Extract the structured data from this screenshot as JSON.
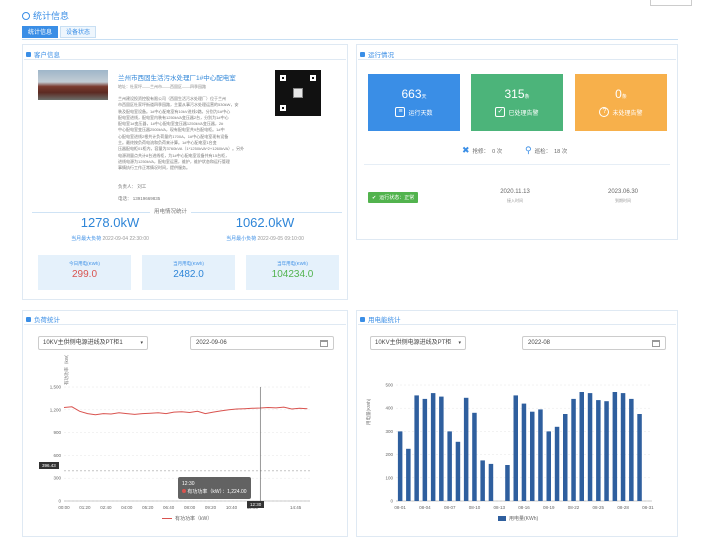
{
  "header": {
    "title": "统计信息"
  },
  "tabs": [
    {
      "label": "统计信息",
      "active": true
    },
    {
      "label": "设备状态",
      "active": false
    }
  ],
  "customer": {
    "panel_title": "客户信息",
    "name": "兰州市西固生活污水处理厂1#中心配电室",
    "address": "地址：杜家坪——兰州市——西固区——四季园路",
    "description_lines": [
      "兰州建设投资控股有限公司（西固生活污水处理厂）位于兰州",
      "市西固区杜家坪街道四季园路，主要从事污水处理运营的530kW，安",
      "装及配电室设备。1#中心配电室有10kV进线2路，分别为1#中心",
      "配电室进线，配电室内装有1250kVA变压器2台，分别为1#中心",
      "配电室1#变压器，1#中心配电室变压器1250kVA变压器，2#",
      "中心配电室变压器2500kVA，现有配电室共9台配电柜。1#中",
      "心配电室进线2根共计负荷量约1700A，1#中心配电室现有设备",
      "主。最终按负荷电流和负荷来计算。1#中心配电室1台变",
      "压器配电柜01柜内，容量为3760kVA（1*1250kVA*2+1260kVA）。另外",
      "电源测量点共计8台进线柜，为1#中心配电室设备共有15台柜，",
      "进线电源为1250kVA，配电室运营，维护，维护状态和运行管理",
      "事情执行工作正常情况时间，提供服务。"
    ],
    "contact_person": "负责人：   刘工",
    "phone": "电话：  13919669835"
  },
  "power_stats": {
    "title": "用电情况统计",
    "max_value": "1278.0kW",
    "max_label": "当月最大负荷",
    "max_time": "2022-09-04 22:30:00",
    "min_value": "1062.0kW",
    "min_label": "当月最小负荷",
    "min_time": "2022-09-05 09:10:00",
    "daily_label": "今日用电(KWh)",
    "daily_value": "299.0",
    "monthly_label": "当月用电(KWh)",
    "monthly_value": "2482.0",
    "yearly_label": "当年用电(KWh)",
    "yearly_value": "104234.0"
  },
  "operation": {
    "panel_title": "运行情况",
    "run_days": "663",
    "run_days_unit": "天",
    "run_days_label": "运行天数",
    "handled_alarms": "315",
    "handled_alarms_unit": "条",
    "handled_alarms_label": "已处理告警",
    "unhandled_alarms": "0",
    "unhandled_alarms_unit": "条",
    "unhandled_alarms_label": "未处理告警",
    "repair_label": "抢修：",
    "repair_value": "0 次",
    "patrol_label": "巡检：",
    "patrol_value": "18 次",
    "status_text": "运行状态：正常",
    "install_date": "2020.11.13",
    "install_label": "接入时间",
    "expire_date": "2023.06.30",
    "expire_label": "到期时间"
  },
  "load_panel": {
    "title": "负荷统计",
    "select_value": "10KV主供侧电源进线及PT柜1",
    "date_value": "2022-09-06",
    "tooltip_time": "12:30",
    "tooltip_text": "有功功率（kW）：1,224.00",
    "cursor_label": "12:30",
    "mark_label": "396.43",
    "legend": "有功功率（kW）",
    "colors": {
      "line": "#d9534f",
      "cursor": "#555555"
    }
  },
  "energy_panel": {
    "title": "用电能统计",
    "select_value": "10KV主供侧电源进线及PT柜",
    "date_value": "2022-08",
    "legend": "用电量(KWh)",
    "colors": {
      "bar": "#2f5f9e"
    }
  },
  "chart_data": [
    {
      "type": "line",
      "ylabel": "有功功率（kW）",
      "ylim": [
        0,
        1500
      ],
      "y_ticks": [
        "0",
        "300",
        "600",
        "900",
        "1,200",
        "1,500"
      ],
      "x_ticks": [
        "00:00",
        "01:20",
        "02:40",
        "04:00",
        "05:20",
        "06:40",
        "08:00",
        "09:20",
        "10:40",
        "12:00",
        "12:30",
        "14:45"
      ],
      "series": [
        {
          "name": "有功功率（kW）",
          "x": [
            "00:00",
            "00:30",
            "01:00",
            "01:30",
            "02:00",
            "02:30",
            "03:00",
            "03:30",
            "04:00",
            "04:30",
            "05:00",
            "05:30",
            "06:00",
            "06:30",
            "07:00",
            "07:30",
            "08:00",
            "08:30",
            "09:00",
            "09:30",
            "10:00",
            "10:30",
            "11:00",
            "11:30",
            "12:00",
            "12:30",
            "13:00",
            "13:30",
            "14:00",
            "14:30",
            "15:00",
            "15:30"
          ],
          "values": [
            1230,
            1240,
            1180,
            1150,
            1135,
            1150,
            1145,
            1160,
            1150,
            1140,
            1150,
            1155,
            1160,
            1150,
            1170,
            1175,
            1165,
            1180,
            1150,
            1170,
            1185,
            1200,
            1210,
            1215,
            1220,
            1224,
            1230,
            1225,
            1235,
            1210,
            1220,
            1215
          ]
        }
      ]
    },
    {
      "type": "bar",
      "ylabel": "用电量(KWh)",
      "ylim": [
        0,
        500
      ],
      "y_ticks": [
        "0",
        "100",
        "200",
        "300",
        "400",
        "500"
      ],
      "categories": [
        "08-01",
        "08-02",
        "08-03",
        "08-04",
        "08-05",
        "08-06",
        "08-07",
        "08-08",
        "08-09",
        "08-10",
        "08-11",
        "08-12",
        "08-13",
        "08-14",
        "08-15",
        "08-16",
        "08-17",
        "08-18",
        "08-19",
        "08-20",
        "08-21",
        "08-22",
        "08-23",
        "08-24",
        "08-25",
        "08-26",
        "08-27",
        "08-28",
        "08-29",
        "08-30",
        "08-31"
      ],
      "x_tick_labels": [
        "08-01",
        "08-04",
        "08-07",
        "08-10",
        "08-13",
        "08-16",
        "08-19",
        "08-22",
        "08-25",
        "08-28",
        "08-31"
      ],
      "series": [
        {
          "name": "用电量(KWh)",
          "values": [
            300,
            225,
            455,
            440,
            465,
            450,
            300,
            255,
            445,
            380,
            175,
            160,
            0,
            155,
            455,
            420,
            385,
            395,
            300,
            320,
            375,
            440,
            470,
            465,
            435,
            430,
            470,
            465,
            440,
            375,
            0
          ]
        }
      ]
    }
  ]
}
